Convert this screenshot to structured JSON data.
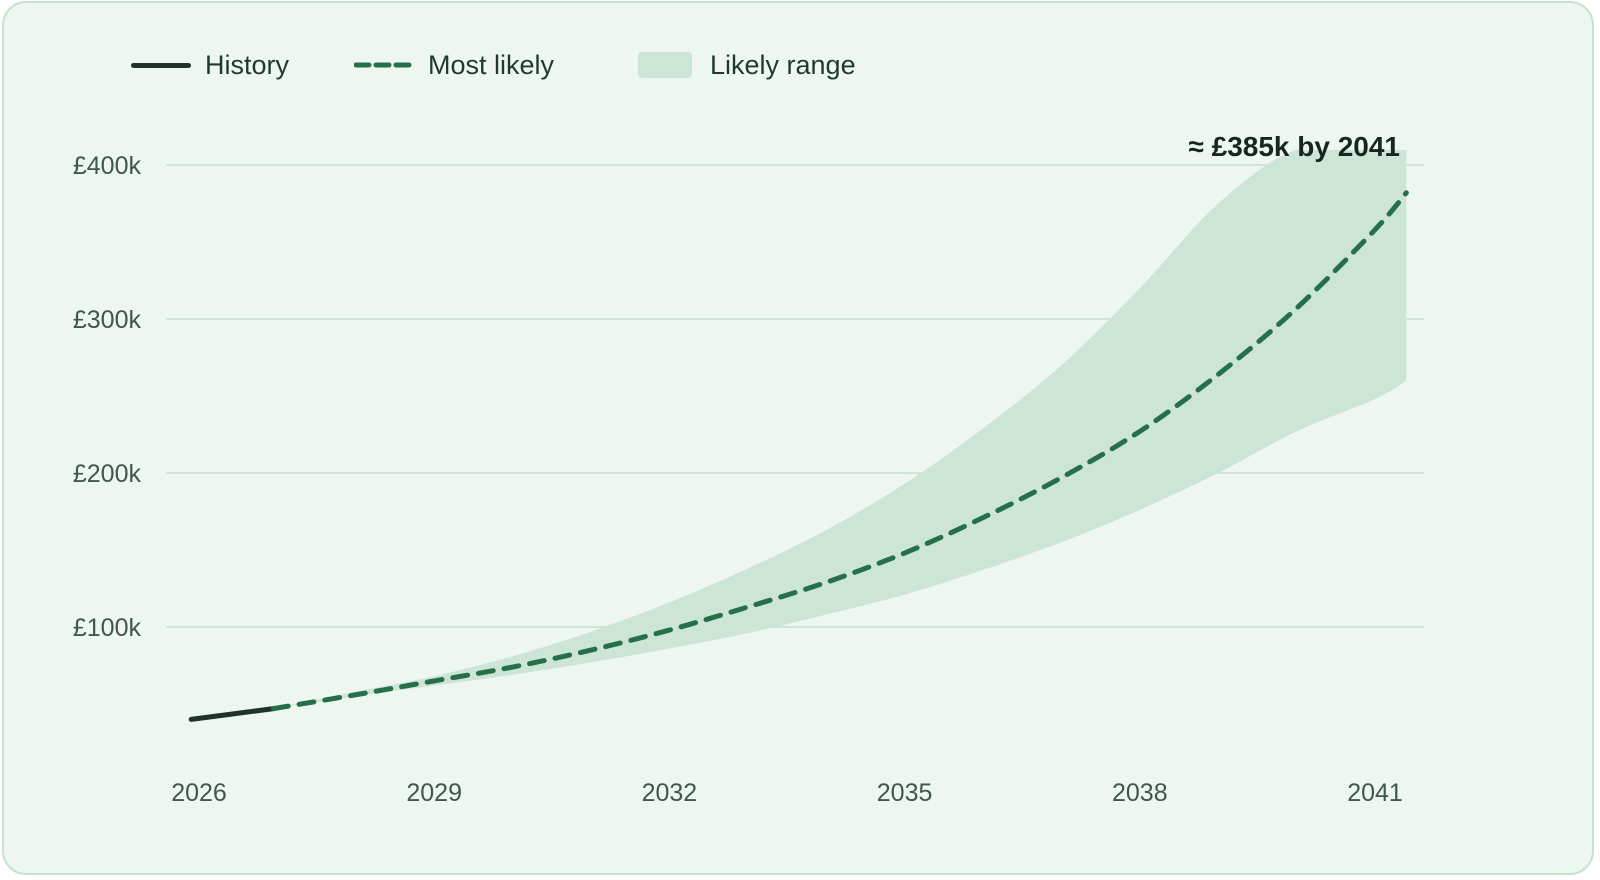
{
  "legend": {
    "history_label": "History",
    "most_likely_label": "Most likely",
    "range_label": "Likely range"
  },
  "annotation": "≈ £385k by 2041",
  "colors": {
    "background": "#edf7f0",
    "border": "#c6e3d1",
    "grid": "#c3e0cd",
    "history": "#1f3328",
    "most_likely": "#25704a",
    "range_band": "#cde5d7",
    "tick_text": "#41574a"
  },
  "chart_data": {
    "type": "line",
    "title": "",
    "xlabel": "",
    "ylabel": "",
    "xlim": [
      2025.9,
      2041.4
    ],
    "ylim": [
      0,
      400000
    ],
    "grid": true,
    "legend_position": "top-left",
    "y_ticks": [
      {
        "value": 100000,
        "label": "£100k"
      },
      {
        "value": 200000,
        "label": "£200k"
      },
      {
        "value": 300000,
        "label": "£300k"
      },
      {
        "value": 400000,
        "label": "£400k"
      }
    ],
    "x_ticks": [
      {
        "value": 2026,
        "label": "2026"
      },
      {
        "value": 2029,
        "label": "2029"
      },
      {
        "value": 2032,
        "label": "2032"
      },
      {
        "value": 2035,
        "label": "2035"
      },
      {
        "value": 2038,
        "label": "2038"
      },
      {
        "value": 2041,
        "label": "2041"
      }
    ],
    "series": [
      {
        "name": "History",
        "style": "solid",
        "x": [
          2025.9,
          2026.95
        ],
        "y": [
          40000,
          47000
        ]
      },
      {
        "name": "Most likely",
        "style": "dashed",
        "x": [
          2026.95,
          2028,
          2029,
          2030,
          2031,
          2032,
          2033,
          2034,
          2035,
          2036,
          2037,
          2038,
          2039,
          2040,
          2041,
          2041.4
        ],
        "y": [
          47000,
          56000,
          65000,
          74000,
          85000,
          98000,
          113000,
          129000,
          148000,
          171000,
          197000,
          227000,
          264000,
          307000,
          358000,
          382000
        ]
      }
    ],
    "band": {
      "name": "Likely range",
      "x": [
        2026.95,
        2028,
        2029,
        2030,
        2031,
        2032,
        2033,
        2034,
        2035,
        2036,
        2037,
        2038,
        2039,
        2040,
        2041,
        2041.4
      ],
      "lower": [
        47000,
        55000,
        62000,
        69000,
        77000,
        86000,
        96000,
        108000,
        121000,
        137000,
        155000,
        176000,
        200000,
        227000,
        248000,
        260000
      ],
      "upper": [
        47000,
        58000,
        68000,
        81000,
        97000,
        116000,
        138000,
        163000,
        193000,
        229000,
        270000,
        320000,
        375000,
        410000,
        410000,
        410000
      ]
    }
  }
}
